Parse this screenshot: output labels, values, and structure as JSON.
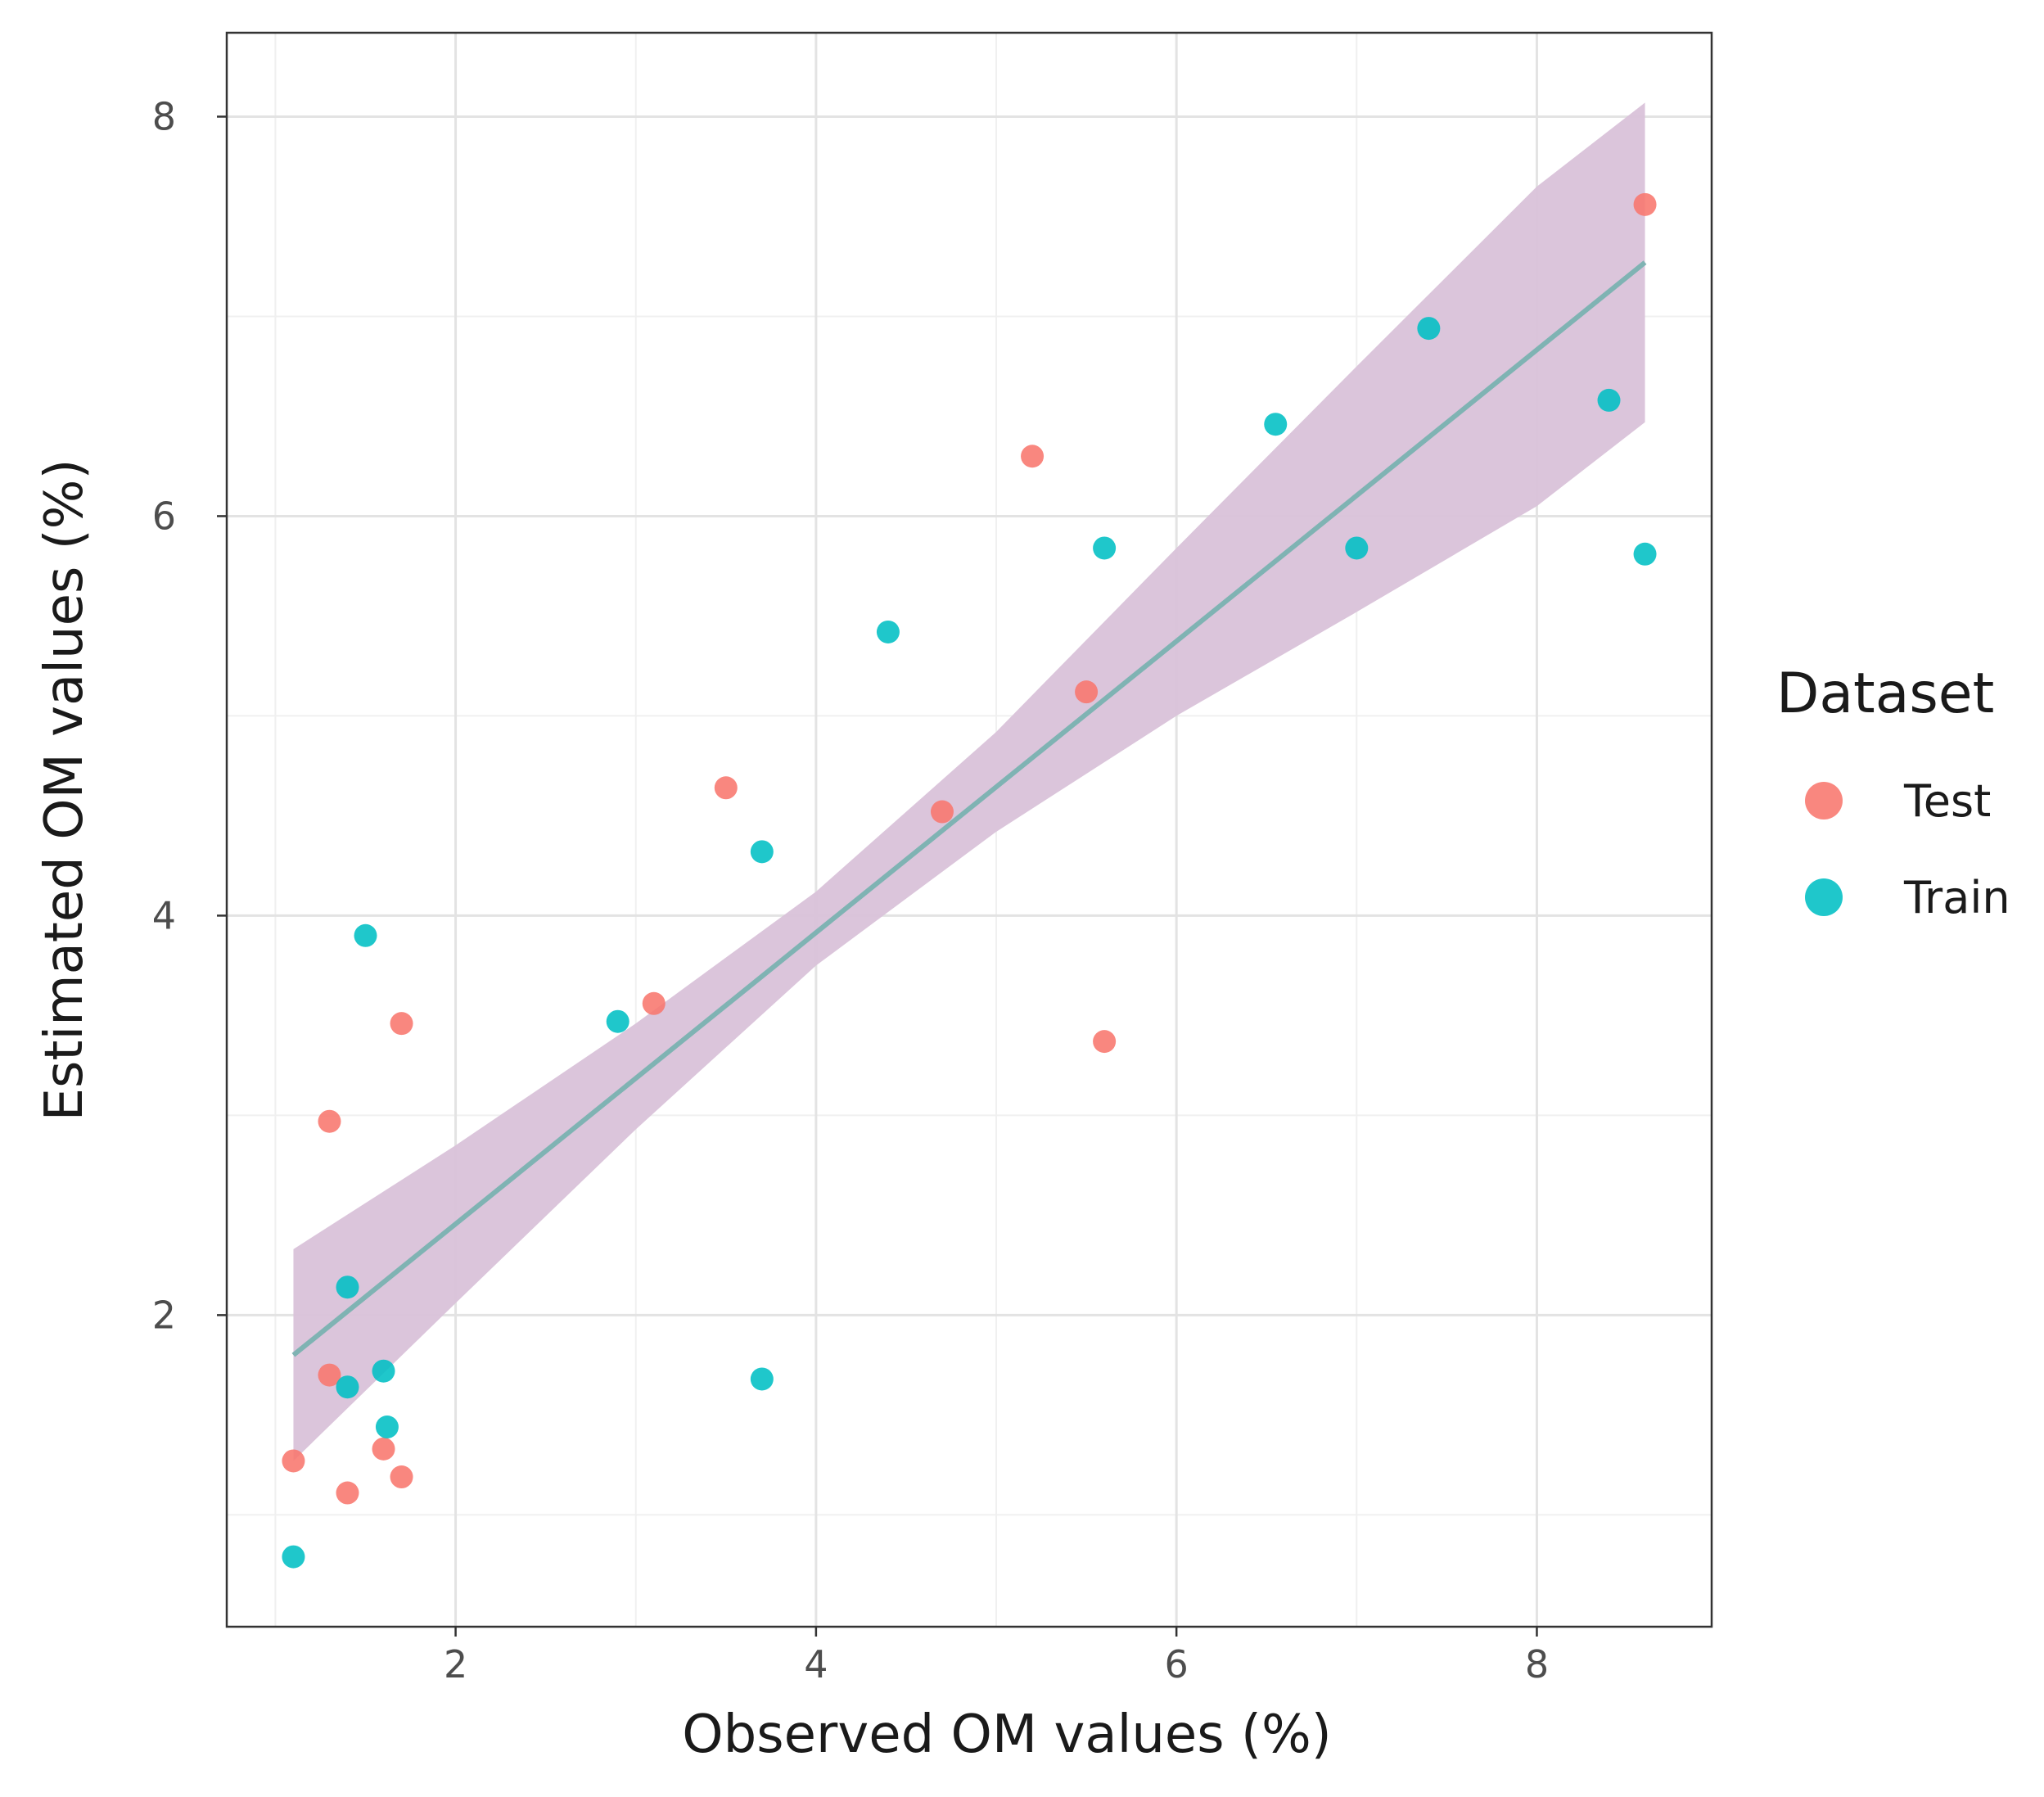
{
  "chart_data": {
    "type": "scatter",
    "title": "",
    "xlabel": "Observed OM values (%)",
    "ylabel": "Estimated OM values (%)",
    "xlim": [
      0.73,
      8.97
    ],
    "ylim": [
      0.44,
      8.42
    ],
    "x_ticks": [
      "2",
      "4",
      "6",
      "8"
    ],
    "y_ticks": [
      "2",
      "4",
      "6",
      "8"
    ],
    "grid": true,
    "legend": {
      "title": "Dataset",
      "position": "right",
      "entries": [
        {
          "label": "Test",
          "color": "#F8766D"
        },
        {
          "label": "Train",
          "color": "#00BFC4"
        }
      ]
    },
    "series": [
      {
        "name": "Test",
        "color": "#F8766D",
        "points": [
          {
            "x": 1.1,
            "y": 1.27
          },
          {
            "x": 1.3,
            "y": 1.7
          },
          {
            "x": 1.3,
            "y": 2.97
          },
          {
            "x": 1.4,
            "y": 1.11
          },
          {
            "x": 1.6,
            "y": 1.33
          },
          {
            "x": 1.7,
            "y": 1.19
          },
          {
            "x": 1.7,
            "y": 3.46
          },
          {
            "x": 3.1,
            "y": 3.56
          },
          {
            "x": 3.5,
            "y": 4.64
          },
          {
            "x": 4.7,
            "y": 4.52
          },
          {
            "x": 5.2,
            "y": 6.3
          },
          {
            "x": 5.5,
            "y": 5.12
          },
          {
            "x": 5.6,
            "y": 3.37
          },
          {
            "x": 8.6,
            "y": 7.56
          }
        ]
      },
      {
        "name": "Train",
        "color": "#00BFC4",
        "points": [
          {
            "x": 1.1,
            "y": 0.79
          },
          {
            "x": 1.4,
            "y": 2.14
          },
          {
            "x": 1.4,
            "y": 1.64
          },
          {
            "x": 1.5,
            "y": 3.9
          },
          {
            "x": 1.6,
            "y": 1.72
          },
          {
            "x": 1.62,
            "y": 1.44
          },
          {
            "x": 2.9,
            "y": 3.47
          },
          {
            "x": 3.7,
            "y": 4.32
          },
          {
            "x": 3.7,
            "y": 1.68
          },
          {
            "x": 4.4,
            "y": 5.42
          },
          {
            "x": 5.6,
            "y": 5.84
          },
          {
            "x": 6.55,
            "y": 6.46
          },
          {
            "x": 7.0,
            "y": 5.84
          },
          {
            "x": 7.4,
            "y": 6.94
          },
          {
            "x": 8.4,
            "y": 6.58
          },
          {
            "x": 8.6,
            "y": 5.81
          }
        ]
      }
    ],
    "regression": {
      "color": "#7fb3b3",
      "band_color": "#d9c2d9",
      "line": [
        {
          "x": 1.1,
          "y": 1.8
        },
        {
          "x": 8.6,
          "y": 7.27
        }
      ],
      "band": [
        {
          "x": 1.1,
          "lower": 1.27,
          "upper": 2.33
        },
        {
          "x": 2.0,
          "lower": 2.06,
          "upper": 2.85
        },
        {
          "x": 3.0,
          "lower": 2.93,
          "upper": 3.46
        },
        {
          "x": 4.0,
          "lower": 3.75,
          "upper": 4.12
        },
        {
          "x": 5.0,
          "lower": 4.42,
          "upper": 4.92
        },
        {
          "x": 6.0,
          "lower": 5.0,
          "upper": 5.84
        },
        {
          "x": 7.0,
          "lower": 5.52,
          "upper": 6.75
        },
        {
          "x": 8.0,
          "lower": 6.05,
          "upper": 7.65
        },
        {
          "x": 8.6,
          "lower": 6.47,
          "upper": 8.07
        }
      ]
    }
  }
}
